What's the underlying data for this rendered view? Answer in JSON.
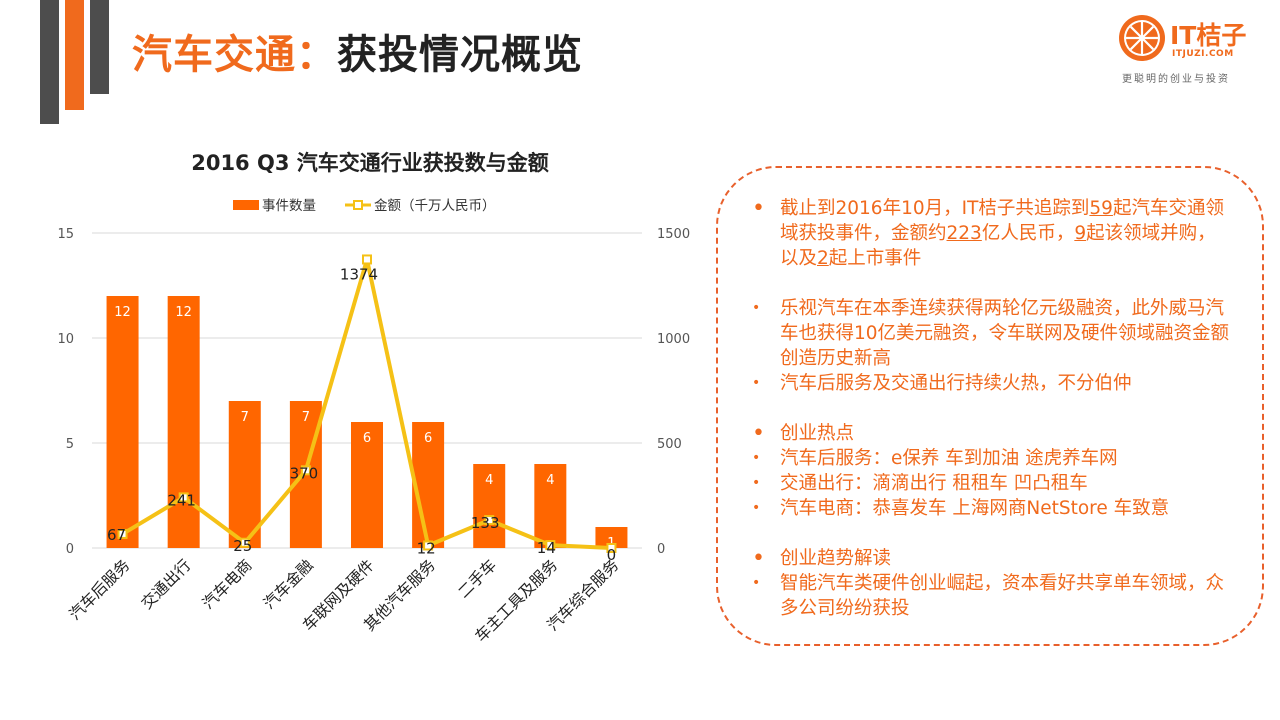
{
  "page": {
    "title_highlight": "汽车交通",
    "title_sep": "：",
    "title_rest": "获投情况概览"
  },
  "logo": {
    "wordmark": "IT桔子",
    "domain": "ITJUZI.COM",
    "tagline": "更聪明的创业与投资"
  },
  "colors": {
    "accent": "#f06a1d",
    "bar": "#ff6600",
    "line": "#f5c116",
    "deco_gray": "#4d4d4d",
    "panel_border": "#e8602c"
  },
  "chart_data": {
    "type": "bar+line",
    "title": "2016 Q3 汽车交通行业获投数与金额",
    "categories": [
      "汽车后服务",
      "交通出行",
      "汽车电商",
      "汽车金融",
      "车联网及硬件",
      "其他汽车服务",
      "二手车",
      "车主工具及服务",
      "汽车综合服务"
    ],
    "series": [
      {
        "name": "事件数量",
        "kind": "bar",
        "axis": "left",
        "values": [
          12,
          12,
          7,
          7,
          6,
          6,
          4,
          4,
          1
        ]
      },
      {
        "name": "金额（千万人民币）",
        "kind": "line",
        "axis": "right",
        "values": [
          67,
          241,
          25,
          370,
          1374,
          12,
          133,
          14,
          0
        ]
      }
    ],
    "y_left": {
      "min": 0,
      "max": 15,
      "ticks": [
        0,
        5,
        10,
        15
      ]
    },
    "y_right": {
      "min": 0,
      "max": 1500,
      "ticks": [
        0,
        500,
        1000,
        1500
      ]
    },
    "grid": true,
    "legend": "top"
  },
  "panel": {
    "bullets": [
      {
        "kind": "major",
        "gap": false,
        "segments": [
          {
            "t": "截止到2016年10月，IT桔子共追踪到"
          },
          {
            "t": "59",
            "u": true
          },
          {
            "t": "起汽车交通领域获投事件，金额约"
          },
          {
            "t": "223",
            "u": true
          },
          {
            "t": "亿人民币，"
          },
          {
            "t": "9",
            "u": true
          },
          {
            "t": "起该领域并购，以及"
          },
          {
            "t": "2",
            "u": true
          },
          {
            "t": "起上市事件"
          }
        ]
      },
      {
        "kind": "minor",
        "gap": true,
        "segments": [
          {
            "t": "乐视汽车在本季连续获得两轮亿元级融资，此外威马汽车也获得10亿美元融资，令车联网及硬件领域融资金额创造历史新高"
          }
        ]
      },
      {
        "kind": "minor",
        "gap": false,
        "segments": [
          {
            "t": "汽车后服务及交通出行持续火热，不分伯仲"
          }
        ]
      },
      {
        "kind": "major",
        "gap": true,
        "segments": [
          {
            "t": "创业热点"
          }
        ]
      },
      {
        "kind": "minor",
        "gap": false,
        "segments": [
          {
            "t": "汽车后服务：e保养 车到加油 途虎养车网"
          }
        ]
      },
      {
        "kind": "minor",
        "gap": false,
        "segments": [
          {
            "t": "交通出行：滴滴出行 租租车 凹凸租车"
          }
        ]
      },
      {
        "kind": "minor",
        "gap": false,
        "segments": [
          {
            "t": "汽车电商：恭喜发车 上海网商NetStore 车致意"
          }
        ]
      },
      {
        "kind": "major",
        "gap": true,
        "segments": [
          {
            "t": "创业趋势解读"
          }
        ]
      },
      {
        "kind": "minor",
        "gap": false,
        "segments": [
          {
            "t": "智能汽车类硬件创业崛起，资本看好共享单车领域，众多公司纷纷获投"
          }
        ]
      }
    ]
  }
}
